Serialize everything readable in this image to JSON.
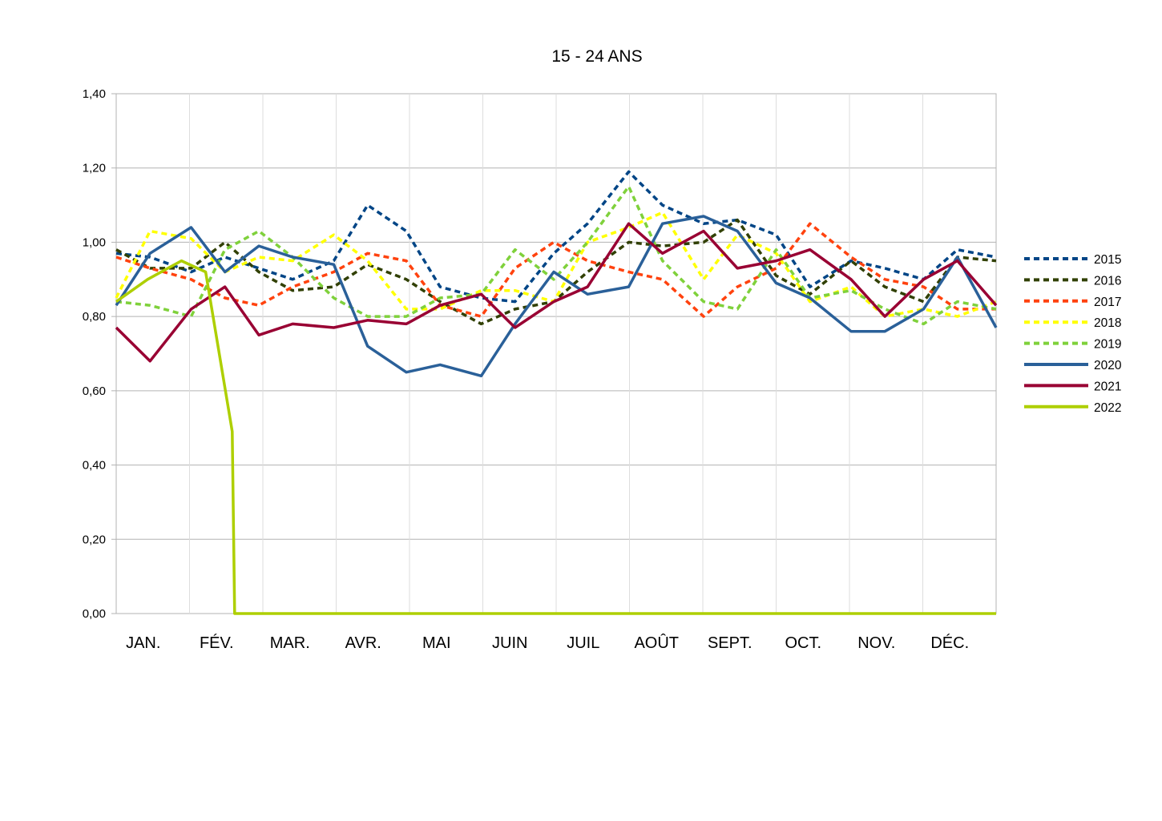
{
  "chart_data": {
    "type": "line",
    "title": "15 - 24 ANS",
    "xlabel": "",
    "ylabel": "",
    "ylim": [
      0,
      1.4
    ],
    "yticks": [
      0,
      0.2,
      0.4,
      0.6,
      0.8,
      1.0,
      1.2,
      1.4
    ],
    "ytick_labels": [
      "0,00",
      "0,20",
      "0,40",
      "0,60",
      "0,80",
      "1,00",
      "1,20",
      "1,40"
    ],
    "months": [
      "JAN.",
      "FÉV.",
      "MAR.",
      "AVR.",
      "MAI",
      "JUIN",
      "JUIL",
      "AOÛT",
      "SEPT.",
      "OCT.",
      "NOV.",
      "DÉC."
    ],
    "x": [
      1,
      15,
      32,
      46,
      60,
      74,
      91,
      105,
      121,
      135,
      152,
      166,
      182,
      196,
      213,
      227,
      244,
      258,
      274,
      288,
      305,
      319,
      335,
      349,
      365
    ],
    "grid": true,
    "legend": "right",
    "series": [
      {
        "name": "2015",
        "color": "#004586",
        "dash": true,
        "values": [
          0.97,
          0.96,
          0.92,
          0.96,
          0.93,
          0.9,
          0.95,
          1.1,
          1.03,
          0.88,
          0.85,
          0.84,
          0.97,
          1.05,
          1.19,
          1.1,
          1.05,
          1.06,
          1.02,
          0.88,
          0.95,
          0.93,
          0.9,
          0.98,
          0.96
        ]
      },
      {
        "name": "2016",
        "color": "#314004",
        "dash": true,
        "values": [
          0.98,
          0.93,
          0.93,
          1.0,
          0.92,
          0.87,
          0.88,
          0.94,
          0.9,
          0.84,
          0.78,
          0.82,
          0.84,
          0.92,
          1.0,
          0.99,
          1.0,
          1.06,
          0.91,
          0.86,
          0.95,
          0.88,
          0.84,
          0.96,
          0.95
        ]
      },
      {
        "name": "2017",
        "color": "#ff420e",
        "dash": true,
        "values": [
          0.96,
          0.93,
          0.9,
          0.85,
          0.83,
          0.88,
          0.92,
          0.97,
          0.95,
          0.83,
          0.8,
          0.93,
          1.0,
          0.95,
          0.92,
          0.9,
          0.8,
          0.88,
          0.93,
          1.05,
          0.96,
          0.9,
          0.88,
          0.82,
          0.82
        ]
      },
      {
        "name": "2018",
        "color": "#ffff00",
        "dash": true,
        "values": [
          0.85,
          1.03,
          1.01,
          0.92,
          0.96,
          0.95,
          1.02,
          0.95,
          0.82,
          0.82,
          0.87,
          0.87,
          0.84,
          1.0,
          1.04,
          1.08,
          0.9,
          1.02,
          0.97,
          0.84,
          0.88,
          0.8,
          0.82,
          0.8,
          0.84
        ]
      },
      {
        "name": "2019",
        "color": "#7fd13b",
        "dash": true,
        "values": [
          0.84,
          0.83,
          0.8,
          0.98,
          1.03,
          0.96,
          0.85,
          0.8,
          0.8,
          0.85,
          0.86,
          0.98,
          0.9,
          1.0,
          1.15,
          0.95,
          0.84,
          0.82,
          0.98,
          0.85,
          0.87,
          0.82,
          0.78,
          0.84,
          0.82
        ]
      },
      {
        "name": "2020",
        "color": "#2a6099",
        "dash": false,
        "values": [
          0.83,
          0.97,
          1.04,
          0.92,
          0.99,
          0.96,
          0.94,
          0.72,
          0.65,
          0.67,
          0.64,
          0.78,
          0.92,
          0.86,
          0.88,
          1.05,
          1.07,
          1.03,
          0.89,
          0.85,
          0.76,
          0.76,
          0.82,
          0.96,
          0.77
        ]
      },
      {
        "name": "2021",
        "color": "#990033",
        "dash": false,
        "values": [
          0.77,
          0.68,
          0.82,
          0.88,
          0.75,
          0.78,
          0.77,
          0.79,
          0.78,
          0.83,
          0.86,
          0.77,
          0.84,
          0.88,
          1.05,
          0.97,
          1.03,
          0.93,
          0.95,
          0.98,
          0.9,
          0.8,
          0.9,
          0.95,
          0.83
        ]
      },
      {
        "name": "2022",
        "color": "#aecf00",
        "dash": false,
        "values": [
          0.84,
          0.9,
          0.95,
          0.92,
          0.49,
          0.0,
          0.0,
          0.0,
          0.0,
          0.0,
          0.0,
          0.0,
          0.0,
          0.0,
          0.0,
          0.0,
          0.0,
          0.0,
          0.0,
          0.0,
          0.0,
          0.0,
          0.0,
          0.0,
          0.0
        ],
        "x": [
          1,
          14,
          28,
          38,
          49,
          50,
          60,
          74,
          91,
          105,
          121,
          135,
          152,
          166,
          182,
          196,
          213,
          227,
          244,
          258,
          274,
          288,
          305,
          335,
          365
        ]
      }
    ]
  }
}
